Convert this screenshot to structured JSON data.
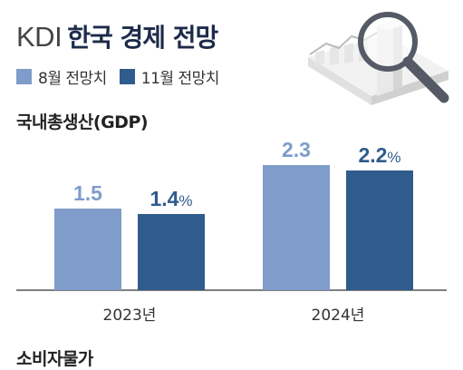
{
  "header": {
    "prefix": "KDI",
    "title": "한국 경제 전망"
  },
  "illustration": {
    "icon": "magnifying-glass-chart-icon"
  },
  "sections": [
    {
      "title": "국내총생산(GDP)"
    },
    {
      "title": "소비자물가"
    }
  ],
  "colors": {
    "august": "#7f9cca",
    "november": "#2f5b8d",
    "august_label": "#7f9cca",
    "november_label": "#2f5b8d"
  },
  "chart_data": {
    "type": "bar",
    "categories": [
      "2023년",
      "2024년"
    ],
    "series": [
      {
        "name": "8월 전망치",
        "values": [
          1.5,
          2.3
        ],
        "labels": [
          "1.5",
          "2.3"
        ]
      },
      {
        "name": "11월 전망치",
        "values": [
          1.4,
          2.2
        ],
        "labels": [
          "1.4%",
          "2.2%"
        ]
      }
    ],
    "title": "국내총생산(GDP)",
    "unit": "%",
    "legend": "top-left",
    "grid": false
  }
}
